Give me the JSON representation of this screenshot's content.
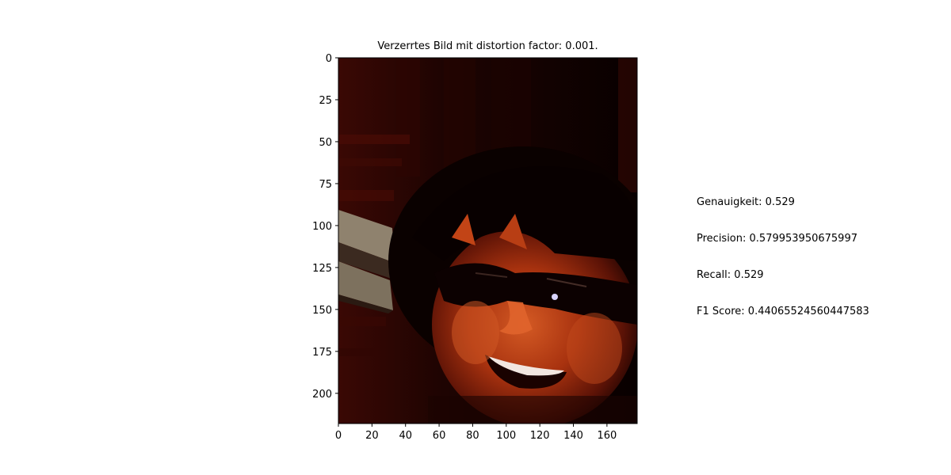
{
  "chart_data": {
    "type": "image",
    "title": "Verzerrtes Bild mit distortion factor: 0.001.",
    "image": {
      "description_icon": "distorted-face-photo",
      "colors": {
        "dark": "#070000",
        "mid": "#3a0803",
        "skin": "#b03a14",
        "highlight": "#e0642c",
        "book": "#8f826e"
      }
    },
    "xlim": [
      0,
      178
    ],
    "ylim": [
      218,
      0
    ],
    "x_ticks": [
      0,
      20,
      40,
      60,
      80,
      100,
      120,
      140,
      160
    ],
    "y_ticks": [
      0,
      25,
      50,
      75,
      100,
      125,
      150,
      175,
      200
    ],
    "grid": false
  },
  "metrics": {
    "accuracy": "Genauigkeit: 0.529",
    "precision": "Precision: 0.579953950675997",
    "recall": "Recall: 0.529",
    "f1": "F1 Score: 0.44065524560447583"
  }
}
